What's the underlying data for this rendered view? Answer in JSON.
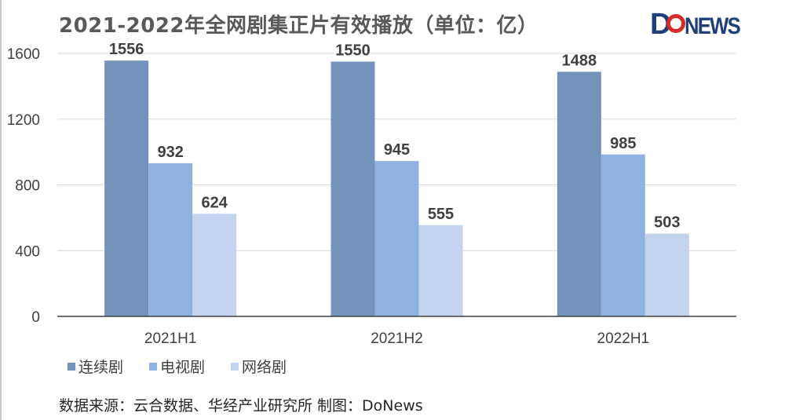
{
  "title": "2021-2022年全网剧集正片有效播放（单位：亿）",
  "logo": {
    "text_do": "Do",
    "text_news": "NEWS",
    "color": "#1f3f7a",
    "accent": "#d62b2b"
  },
  "source": "数据来源：云合数据、华经产业研究所  制图：DoNews",
  "chart_data": {
    "type": "bar",
    "title": "2021-2022年全网剧集正片有效播放（单位：亿）",
    "categories": [
      "2021H1",
      "2021H2",
      "2022H1"
    ],
    "series": [
      {
        "name": "连续剧",
        "values": [
          1556,
          1550,
          1488
        ],
        "color": "#7393bb"
      },
      {
        "name": "电视剧",
        "values": [
          932,
          945,
          985
        ],
        "color": "#8fb2e0"
      },
      {
        "name": "网络剧",
        "values": [
          624,
          555,
          503
        ],
        "color": "#c3d3ef"
      }
    ],
    "ylim": [
      0,
      1600
    ],
    "yticks": [
      0,
      400,
      800,
      1200,
      1600
    ],
    "grid": true,
    "legend_position": "bottom-left",
    "xlabel": "",
    "ylabel": ""
  }
}
